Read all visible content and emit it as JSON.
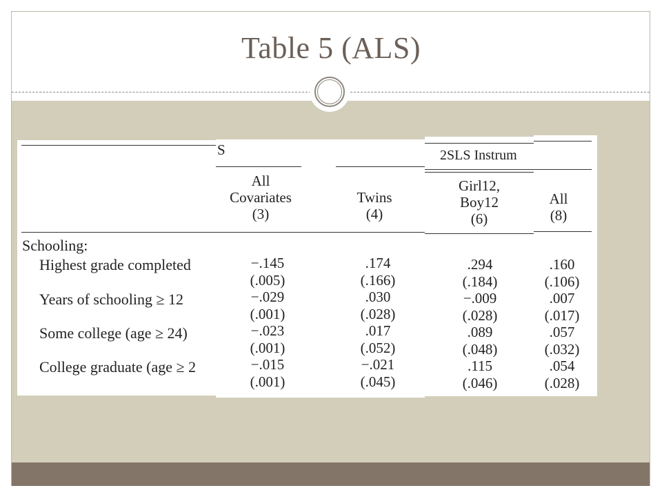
{
  "slide": {
    "title": "Table 5 (ALS)"
  },
  "table": {
    "rows": {
      "section": "Schooling:",
      "r1": "Highest grade completed",
      "r2": "Years of schooling ≥ 12",
      "r3": "Some college (age ≥ 24)",
      "r4": "College graduate (age ≥ 2"
    },
    "panel2": {
      "group_fragment": "S",
      "col_a": {
        "head1": "All",
        "head2": "Covariates",
        "num": "(3)",
        "values": [
          "−.145",
          "(.005)",
          "−.029",
          "(.001)",
          "−.023",
          "(.001)",
          "−.015",
          "(.001)"
        ]
      },
      "col_b": {
        "head1": "Twins",
        "num": "(4)",
        "values": [
          ".174",
          "(.166)",
          ".030",
          "(.028)",
          ".017",
          "(.052)",
          "−.021",
          "(.045)"
        ]
      }
    },
    "panel3": {
      "group": "2SLS Instrum",
      "head1": "Girl12,",
      "head2": "Boy12",
      "num": "(6)",
      "values": [
        ".294",
        "(.184)",
        "−.009",
        "(.028)",
        ".089",
        "(.048)",
        ".115",
        "(.046)"
      ]
    },
    "panel4": {
      "head1": "All",
      "num": "(8)",
      "values": [
        ".160",
        "(.106)",
        ".007",
        "(.017)",
        ".057",
        "(.032)",
        ".054",
        "(.028)"
      ]
    }
  }
}
